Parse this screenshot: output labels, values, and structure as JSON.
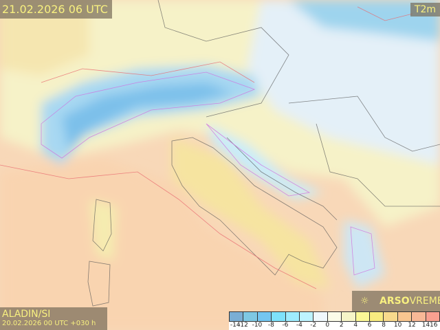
{
  "header": {
    "valid_time": "21.02.2026 06 UTC",
    "variable": "T2m"
  },
  "model": {
    "name": "ALADIN/SI",
    "run": "20.02.2026 00 UTC +030 h"
  },
  "brand": {
    "name_bold": "ARSO",
    "name_light": "VREME",
    "icon": "sun-icon"
  },
  "legend": {
    "ticks": [
      "-14",
      "-12",
      "-10",
      "-8",
      "-6",
      "-4",
      "-2",
      "0",
      "2",
      "4",
      "6",
      "8",
      "10",
      "12",
      "14",
      "16"
    ],
    "colors": [
      "#7aaed4",
      "#7ec8e3",
      "#74c6f0",
      "#7ee2fa",
      "#9eecfd",
      "#bdf3fe",
      "#f0f8fc",
      "#fbfbe8",
      "#f6f5c8",
      "#fbf896",
      "#f8ec80",
      "#f8da8c",
      "#f9c690",
      "#f8b896",
      "#f8a090"
    ]
  }
}
